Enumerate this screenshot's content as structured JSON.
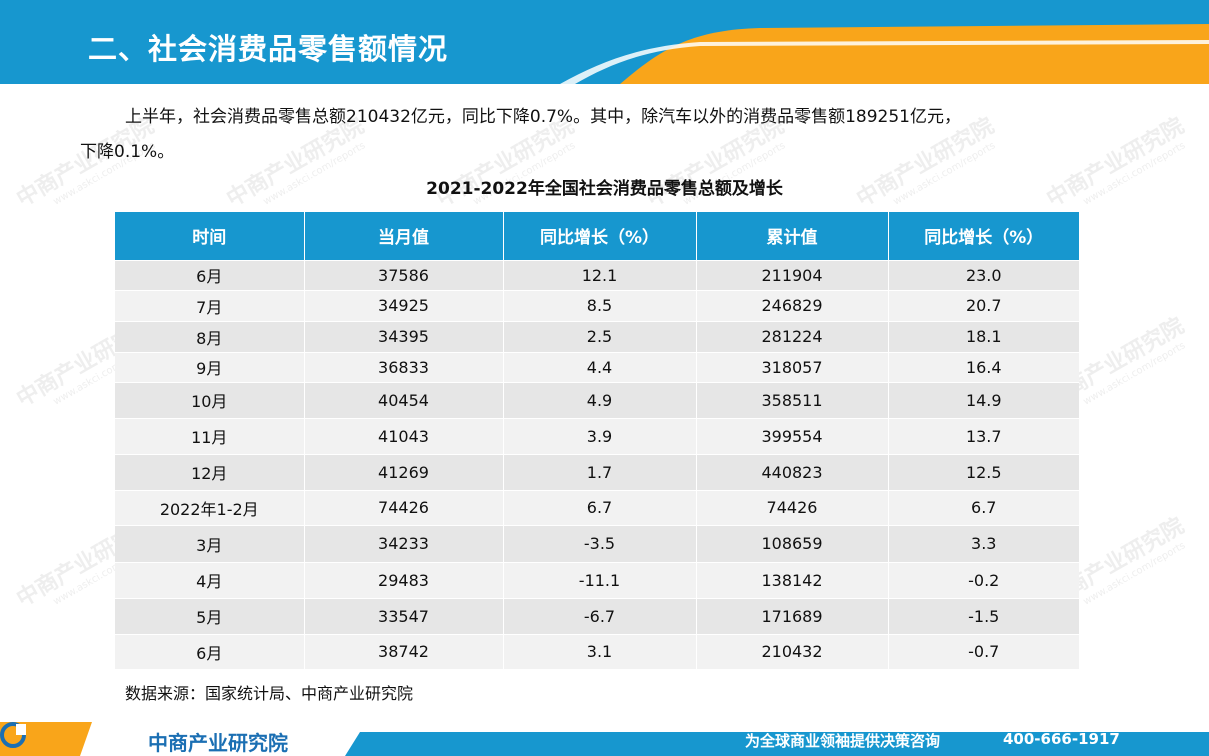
{
  "header": {
    "title": "二、社会消费品零售额情况",
    "colors": {
      "primary": "#1797cf",
      "accent": "#f9a51a"
    }
  },
  "intro": {
    "line1": "上半年，社会消费品零售总额210432亿元，同比下降0.7%。其中，除汽车以外的消费品零售额189251亿元，",
    "line2": "下降0.1%。"
  },
  "table": {
    "title": "2021-2022年全国社会消费品零售总额及增长",
    "headers": [
      "时间",
      "当月值",
      "同比增长（%）",
      "累计值",
      "同比增长（%）"
    ],
    "rows": [
      [
        "6月",
        "37586",
        "12.1",
        "211904",
        "23.0"
      ],
      [
        "7月",
        "34925",
        "8.5",
        "246829",
        "20.7"
      ],
      [
        "8月",
        "34395",
        "2.5",
        "281224",
        "18.1"
      ],
      [
        "9月",
        "36833",
        "4.4",
        "318057",
        "16.4"
      ],
      [
        "10月",
        "40454",
        "4.9",
        "358511",
        "14.9"
      ],
      [
        "11月",
        "41043",
        "3.9",
        "399554",
        "13.7"
      ],
      [
        "12月",
        "41269",
        "1.7",
        "440823",
        "12.5"
      ],
      [
        "2022年1-2月",
        "74426",
        "6.7",
        "74426",
        "6.7"
      ],
      [
        "3月",
        "34233",
        "-3.5",
        "108659",
        "3.3"
      ],
      [
        "4月",
        "29483",
        "-11.1",
        "138142",
        "-0.2"
      ],
      [
        "5月",
        "33547",
        "-6.7",
        "171689",
        "-1.5"
      ],
      [
        "6月",
        "38742",
        "3.1",
        "210432",
        "-0.7"
      ]
    ],
    "source": "数据来源：国家统计局、中商产业研究院"
  },
  "watermark": {
    "text": "中商产业研究院",
    "sub": "www.askci.com/reports"
  },
  "footer": {
    "logo_text": "中商产业研究院",
    "slogan": "为全球商业领袖提供决策咨询",
    "phone": "400-666-1917",
    "logo_icon": "askci-logo-icon"
  }
}
